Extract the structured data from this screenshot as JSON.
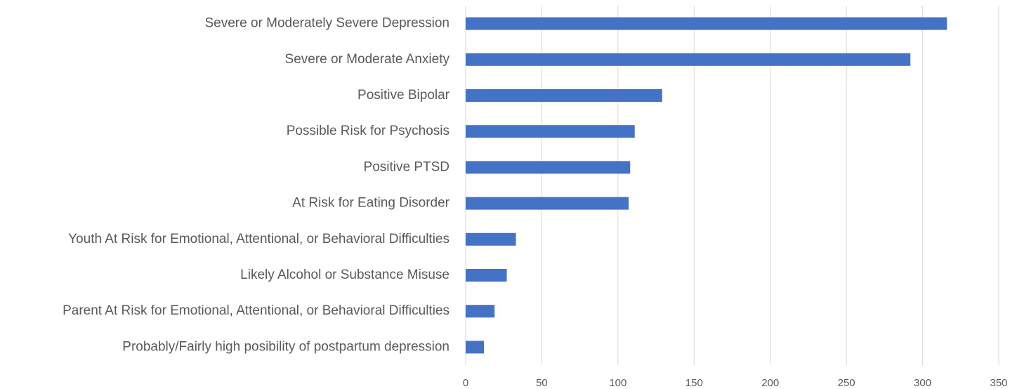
{
  "chart_data": {
    "type": "hbar",
    "categories": [
      "Severe or Moderately Severe Depression",
      "Severe or Moderate Anxiety",
      "Positive Bipolar",
      "Possible Risk for Psychosis",
      "Positive PTSD",
      "At Risk for Eating Disorder",
      "Youth At Risk for Emotional, Attentional, or Behavioral Difficulties",
      "Likely Alcohol or Substance Misuse",
      "Parent At Risk for Emotional, Attentional, or Behavioral Difficulties",
      "Probably/Fairly high posibility of postpartum depression"
    ],
    "values": [
      316,
      292,
      129,
      111,
      108,
      107,
      33,
      27,
      19,
      12
    ],
    "color": "#4472c4",
    "xlim": [
      0,
      350
    ],
    "xticks": [
      0,
      50,
      100,
      150,
      200,
      250,
      300,
      350
    ],
    "grid": true
  }
}
